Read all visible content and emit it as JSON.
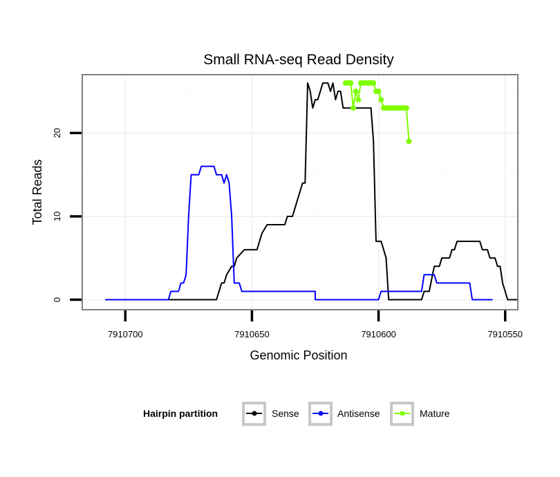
{
  "chart_data": {
    "type": "line",
    "title": "Small RNA-seq Read Density",
    "xlabel": "Genomic Position",
    "ylabel": "Total Reads",
    "xlim": [
      7910717,
      7910545
    ],
    "x_reversed": true,
    "ylim": [
      -1.2,
      27
    ],
    "xticks": [
      7910700,
      7910650,
      7910600,
      7910550
    ],
    "xtick_labels": [
      "7910700",
      "7910650",
      "7910600",
      "7910550"
    ],
    "yticks": [
      0,
      10,
      20
    ],
    "ytick_labels": [
      "0",
      "10",
      "20"
    ],
    "grid": true,
    "legend": {
      "title": "Hairpin partition",
      "position": "bottom",
      "entries": [
        {
          "label": "Sense",
          "color": "#000000"
        },
        {
          "label": "Antisense",
          "color": "#0000ff"
        },
        {
          "label": "Mature",
          "color": "#7fff00"
        }
      ]
    },
    "series": [
      {
        "name": "Sense",
        "color": "#000000",
        "mode": "line",
        "x": [
          7910708,
          7910665,
          7910664,
          7910663,
          7910662,
          7910661,
          7910660,
          7910658,
          7910657,
          7910656,
          7910653,
          7910652,
          7910651,
          7910648,
          7910647,
          7910646,
          7910644,
          7910643,
          7910642,
          7910638,
          7910637,
          7910636,
          7910634,
          7910633,
          7910632,
          7910631,
          7910630,
          7910629,
          7910628,
          7910627,
          7910626,
          7910625,
          7910624,
          7910623,
          7910622,
          7910621,
          7910620,
          7910619,
          7910618,
          7910617,
          7910616,
          7910615,
          7910614,
          7910613,
          7910612,
          7910611,
          7910610,
          7910609,
          7910608,
          7910607,
          7910606,
          7910605,
          7910604,
          7910603,
          7910602,
          7910601,
          7910600,
          7910599,
          7910598,
          7910597,
          7910596,
          7910595,
          7910594,
          7910593,
          7910592,
          7910591,
          7910590,
          7910589,
          7910588,
          7910585,
          7910583,
          7910582,
          7910581,
          7910580,
          7910578,
          7910577,
          7910576,
          7910575,
          7910573,
          7910572,
          7910571,
          7910570,
          7910569,
          7910568,
          7910566,
          7910561,
          7910560,
          7910559,
          7910558,
          7910557,
          7910556,
          7910555,
          7910554,
          7910553,
          7910552,
          7910551,
          7910550,
          7910549,
          7910548,
          7910545
        ],
        "y": [
          0,
          0,
          0,
          1,
          2,
          2,
          3,
          4,
          4,
          5,
          6,
          6,
          6,
          6,
          7,
          8,
          9,
          9,
          9,
          9,
          9,
          10,
          10,
          11,
          12,
          13,
          14,
          14,
          26,
          25,
          23,
          24,
          24,
          25,
          26,
          26,
          26,
          25,
          26,
          24,
          25,
          25,
          23,
          23,
          23,
          23,
          23,
          23,
          23,
          23,
          23,
          23,
          23,
          23,
          19,
          7,
          7,
          7,
          6,
          5,
          0,
          0,
          0,
          0,
          0,
          0,
          0,
          0,
          0,
          0,
          0,
          1,
          1,
          1,
          4,
          4,
          4,
          5,
          5,
          5,
          6,
          6,
          7,
          7,
          7,
          7,
          7,
          6,
          6,
          6,
          5,
          5,
          5,
          4,
          4,
          2,
          1,
          0,
          0,
          0
        ]
      },
      {
        "name": "Antisense",
        "color": "#0000ff",
        "mode": "line",
        "x": [
          7910708,
          7910683,
          7910682,
          7910679,
          7910678,
          7910677,
          7910676,
          7910675,
          7910674,
          7910673,
          7910672,
          7910671,
          7910670,
          7910669,
          7910668,
          7910667,
          7910666,
          7910665,
          7910664,
          7910663,
          7910662,
          7910661,
          7910660,
          7910659,
          7910658,
          7910657,
          7910656,
          7910655,
          7910654,
          7910653,
          7910652,
          7910651,
          7910650,
          7910645,
          7910625,
          7910625,
          7910600,
          7910599,
          7910584,
          7910583,
          7910582,
          7910578,
          7910577,
          7910565,
          7910564,
          7910563,
          7910555
        ],
        "y": [
          0,
          0,
          1,
          1,
          2,
          2,
          3,
          10,
          15,
          15,
          15,
          15,
          16,
          16,
          16,
          16,
          16,
          16,
          15,
          15,
          15,
          14,
          15,
          14,
          10,
          2,
          2,
          2,
          1,
          1,
          1,
          1,
          1,
          1,
          1,
          0,
          0,
          1,
          1,
          1,
          3,
          3,
          2,
          2,
          2,
          0,
          0
        ]
      },
      {
        "name": "Mature",
        "color": "#7fff00",
        "mode": "points",
        "x": [
          7910613,
          7910612,
          7910611,
          7910610,
          7910609,
          7910608,
          7910607,
          7910606,
          7910605,
          7910604,
          7910603,
          7910602,
          7910601,
          7910600,
          7910599,
          7910598,
          7910597,
          7910596,
          7910595,
          7910594,
          7910593,
          7910592,
          7910591,
          7910590,
          7910589,
          7910588
        ],
        "y": [
          26,
          26,
          26,
          23,
          25,
          24,
          26,
          26,
          26,
          26,
          26,
          26,
          25,
          25,
          24,
          23,
          23,
          23,
          23,
          23,
          23,
          23,
          23,
          23,
          23,
          19
        ]
      }
    ]
  }
}
